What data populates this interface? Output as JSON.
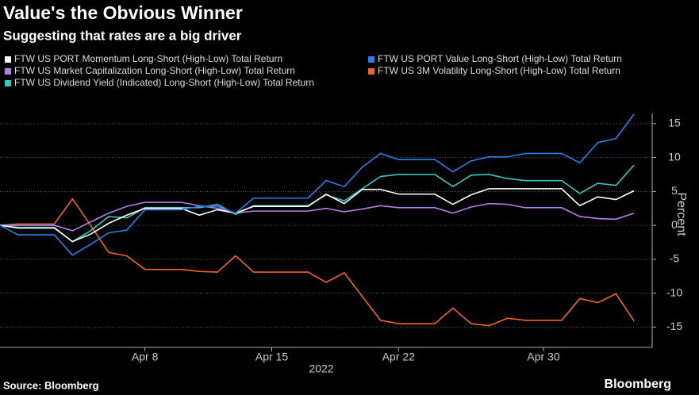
{
  "chart_data": {
    "type": "line",
    "title": "Value's the Obvious Winner",
    "subtitle": "Suggesting that rates are a big driver",
    "ylabel": "Percent",
    "xlabel": "2022",
    "source": "Source: Bloomberg",
    "brand": "Bloomberg",
    "x": [
      "2022-03-31",
      "2022-04-01",
      "2022-04-02",
      "2022-04-03",
      "2022-04-04",
      "2022-04-05",
      "2022-04-06",
      "2022-04-07",
      "2022-04-08",
      "2022-04-09",
      "2022-04-10",
      "2022-04-11",
      "2022-04-12",
      "2022-04-13",
      "2022-04-14",
      "2022-04-15",
      "2022-04-16",
      "2022-04-17",
      "2022-04-18",
      "2022-04-19",
      "2022-04-20",
      "2022-04-21",
      "2022-04-22",
      "2022-04-23",
      "2022-04-24",
      "2022-04-25",
      "2022-04-26",
      "2022-04-27",
      "2022-04-28",
      "2022-04-29",
      "2022-04-30",
      "2022-05-01",
      "2022-05-02",
      "2022-05-03",
      "2022-05-04",
      "2022-05-05"
    ],
    "xlim": [
      "2022-03-31",
      "2022-05-06"
    ],
    "xticks": [
      {
        "value": "2022-04-08",
        "label": "Apr 8"
      },
      {
        "value": "2022-04-15",
        "label": "Apr 15"
      },
      {
        "value": "2022-04-22",
        "label": "Apr 22"
      },
      {
        "value": "2022-04-30",
        "label": "Apr 30"
      }
    ],
    "ylim": [
      -18,
      16.5
    ],
    "yticks": [
      -15,
      -10,
      -5,
      0,
      5,
      10,
      15
    ],
    "grid": true,
    "series": [
      {
        "name": "FTW US PORT Momentum Long-Short (High-Low) Total Return",
        "color": "#ffffff",
        "values": [
          0,
          -0.4,
          -0.4,
          -0.4,
          -2.4,
          -1.3,
          0.3,
          1.5,
          2.5,
          2.5,
          2.5,
          1.5,
          2.3,
          1.8,
          2.8,
          2.8,
          2.8,
          2.8,
          4.6,
          3.2,
          5.3,
          5.3,
          4.6,
          4.6,
          4.6,
          3.1,
          4.5,
          5.4,
          5.4,
          5.4,
          5.4,
          5.4,
          2.9,
          4.2,
          3.8,
          5.1
        ]
      },
      {
        "name": "FTW US PORT Value Long-Short (High-Low) Total Return",
        "color": "#2a7fe6",
        "values": [
          0,
          -1.4,
          -1.4,
          -1.4,
          -4.4,
          -2.8,
          -1.1,
          -0.7,
          2.3,
          2.3,
          2.3,
          2.8,
          2.8,
          1.8,
          4,
          4,
          4,
          4,
          6.6,
          5.7,
          8.6,
          10.6,
          9.7,
          9.7,
          9.7,
          7.9,
          9.5,
          10.1,
          10.1,
          10.6,
          10.6,
          10.6,
          9.2,
          12.2,
          12.8,
          16.4
        ]
      },
      {
        "name": "FTW US Market Capitalization Long-Short (High-Low) Total Return",
        "color": "#b57ee8",
        "values": [
          0,
          0,
          0,
          0,
          -0.8,
          0.5,
          1.8,
          2.8,
          3.4,
          3.4,
          3.4,
          2.9,
          2.5,
          1.8,
          2.1,
          2.1,
          2.1,
          2.1,
          2.5,
          2.0,
          2.4,
          2.9,
          2.6,
          2.6,
          2.6,
          1.8,
          2.7,
          3.2,
          3.1,
          2.6,
          2.6,
          2.6,
          1.3,
          1.0,
          0.9,
          1.8
        ]
      },
      {
        "name": "FTW US 3M Volatility Long-Short (High-Low) Total Return",
        "color": "#f26522",
        "values": [
          0,
          0.2,
          0.2,
          0.2,
          3.9,
          0,
          -4,
          -4.5,
          -6.5,
          -6.5,
          -6.5,
          -6.8,
          -6.9,
          -4.5,
          -6.9,
          -6.9,
          -6.9,
          -6.9,
          -8.4,
          -7,
          -10.5,
          -14,
          -14.5,
          -14.5,
          -14.5,
          -12.2,
          -14.5,
          -14.8,
          -13.7,
          -14,
          -14,
          -14,
          -10.8,
          -11.4,
          -10.1,
          -14.1
        ]
      },
      {
        "name": "FTW US Dividend Yield (Indicated) Long-Short (High-Low) Total Return",
        "color": "#33c9c0",
        "values": [
          0,
          -0.3,
          -0.3,
          -0.3,
          -2.4,
          -0.8,
          1.3,
          1.1,
          2.6,
          2.6,
          2.6,
          2.6,
          3.1,
          1.6,
          2.9,
          2.9,
          2.9,
          2.9,
          4.5,
          3.6,
          5.4,
          7.2,
          7.5,
          7.5,
          7.5,
          5.7,
          7.4,
          7.5,
          6.9,
          6.6,
          6.6,
          6.6,
          4.7,
          6.2,
          5.9,
          8.9
        ]
      }
    ]
  }
}
